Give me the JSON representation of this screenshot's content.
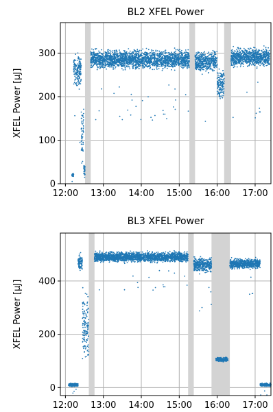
{
  "chart_data": [
    {
      "type": "scatter",
      "title": "BL2 XFEL Power",
      "xlabel": "",
      "ylabel": "XFEL Power [µJ]",
      "x_ticks": [
        "12:00",
        "13:00",
        "14:00",
        "15:00",
        "16:00",
        "17:00"
      ],
      "y_ticks": [
        0,
        100,
        200,
        300
      ],
      "xlim": [
        "11:52",
        "17:25"
      ],
      "ylim": [
        0,
        370
      ],
      "grid": true,
      "point_color": "#1f77b4",
      "shade_color": "#d3d3d3",
      "shaded_spans": [
        {
          "start": "12:31",
          "end": "12:40"
        },
        {
          "start": "15:16",
          "end": "15:25"
        },
        {
          "start": "16:11",
          "end": "16:22"
        }
      ],
      "segments": [
        {
          "start": "12:10",
          "end": "12:13",
          "center": 20,
          "spread": 5
        },
        {
          "start": "12:13",
          "end": "12:25",
          "center": 260,
          "spread": 45
        },
        {
          "start": "12:25",
          "end": "12:29",
          "center": 120,
          "spread": 80
        },
        {
          "start": "12:29",
          "end": "12:31",
          "center": 30,
          "spread": 20
        },
        {
          "start": "12:40",
          "end": "15:16",
          "center": 285,
          "spread": 28
        },
        {
          "start": "15:25",
          "end": "16:00",
          "center": 280,
          "spread": 30
        },
        {
          "start": "16:00",
          "end": "16:11",
          "center": 230,
          "spread": 50
        },
        {
          "start": "16:22",
          "end": "17:23",
          "center": 290,
          "spread": 28
        }
      ]
    },
    {
      "type": "scatter",
      "title": "BL3 XFEL Power",
      "xlabel": "",
      "ylabel": "XFEL Power [µJ]",
      "x_ticks": [
        "12:00",
        "13:00",
        "14:00",
        "15:00",
        "16:00",
        "17:00"
      ],
      "y_ticks": [
        0,
        200,
        400
      ],
      "xlim": [
        "11:52",
        "17:25"
      ],
      "ylim": [
        -30,
        580
      ],
      "grid": true,
      "point_color": "#1f77b4",
      "shade_color": "#d3d3d3",
      "shaded_spans": [
        {
          "start": "12:37",
          "end": "12:46"
        },
        {
          "start": "15:14",
          "end": "15:23"
        },
        {
          "start": "15:51",
          "end": "16:20"
        }
      ],
      "segments": [
        {
          "start": "12:05",
          "end": "12:20",
          "center": 10,
          "spread": 8
        },
        {
          "start": "12:20",
          "end": "12:27",
          "center": 470,
          "spread": 40
        },
        {
          "start": "12:27",
          "end": "12:37",
          "center": 220,
          "spread": 180
        },
        {
          "start": "12:46",
          "end": "15:14",
          "center": 490,
          "spread": 25
        },
        {
          "start": "15:23",
          "end": "15:51",
          "center": 460,
          "spread": 35
        },
        {
          "start": "15:58",
          "end": "16:17",
          "center": 105,
          "spread": 10
        },
        {
          "start": "16:20",
          "end": "17:08",
          "center": 465,
          "spread": 25
        },
        {
          "start": "17:08",
          "end": "17:25",
          "center": 10,
          "spread": 8
        }
      ]
    }
  ]
}
